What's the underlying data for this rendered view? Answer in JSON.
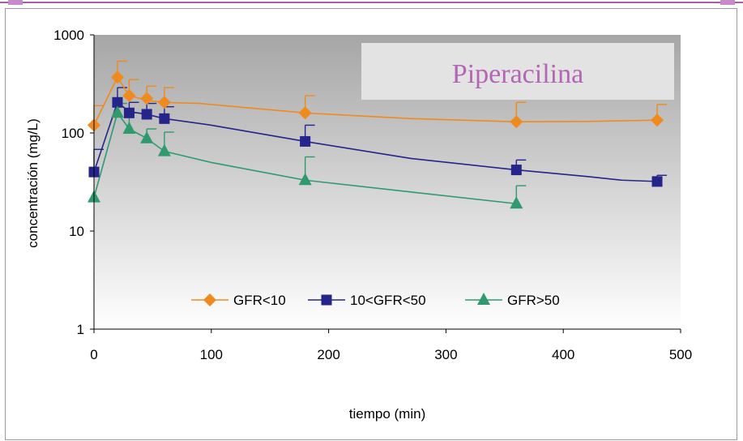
{
  "chart_data": {
    "type": "line",
    "title": "Piperacilina",
    "title_color": "#b366b3",
    "xlabel": "tiempo (min)",
    "ylabel": "concentración (mg/L)",
    "x_ticks": [
      "0",
      "100",
      "200",
      "300",
      "400",
      "500"
    ],
    "y_ticks": [
      "1",
      "10",
      "100",
      "1000"
    ],
    "xlim": [
      0,
      500
    ],
    "ylim": [
      1,
      1000
    ],
    "y_scale": "log",
    "grid": false,
    "legend_position": "bottom-center",
    "series": [
      {
        "name": "GFR<10",
        "color": "#f08a1e",
        "marker": "diamond",
        "points": [
          [
            0,
            120
          ],
          [
            20,
            370
          ],
          [
            30,
            240
          ],
          [
            45,
            225
          ],
          [
            60,
            205
          ],
          [
            180,
            160
          ],
          [
            360,
            130
          ],
          [
            480,
            135
          ]
        ],
        "error_up": [
          190,
          540,
          350,
          300,
          290,
          240,
          205,
          195
        ],
        "curve": [
          [
            0,
            120
          ],
          [
            20,
            370
          ],
          [
            30,
            240
          ],
          [
            45,
            215
          ],
          [
            60,
            205
          ],
          [
            90,
            200
          ],
          [
            180,
            160
          ],
          [
            270,
            140
          ],
          [
            360,
            130
          ],
          [
            420,
            131
          ],
          [
            480,
            135
          ]
        ]
      },
      {
        "name": "10<GFR<50",
        "color": "#24248a",
        "marker": "square",
        "points": [
          [
            0,
            40
          ],
          [
            20,
            205
          ],
          [
            30,
            160
          ],
          [
            45,
            155
          ],
          [
            60,
            140
          ],
          [
            180,
            82
          ],
          [
            360,
            42
          ],
          [
            480,
            32
          ]
        ],
        "error_up": [
          68,
          290,
          205,
          200,
          185,
          120,
          53,
          37
        ],
        "curve": [
          [
            0,
            40
          ],
          [
            20,
            205
          ],
          [
            30,
            165
          ],
          [
            45,
            155
          ],
          [
            60,
            140
          ],
          [
            100,
            120
          ],
          [
            180,
            82
          ],
          [
            270,
            55
          ],
          [
            360,
            42
          ],
          [
            420,
            36
          ],
          [
            450,
            33
          ],
          [
            480,
            32
          ]
        ]
      },
      {
        "name": "GFR>50",
        "color": "#2e9a6e",
        "marker": "triangle",
        "points": [
          [
            0,
            22
          ],
          [
            20,
            160
          ],
          [
            30,
            110
          ],
          [
            45,
            88
          ],
          [
            60,
            65
          ],
          [
            180,
            33
          ],
          [
            360,
            19
          ]
        ],
        "error_up": [
          22,
          200,
          160,
          110,
          102,
          57,
          29
        ],
        "curve": [
          [
            0,
            22
          ],
          [
            20,
            160
          ],
          [
            30,
            110
          ],
          [
            45,
            88
          ],
          [
            60,
            65
          ],
          [
            100,
            50
          ],
          [
            180,
            33
          ],
          [
            270,
            25
          ],
          [
            360,
            19
          ]
        ]
      }
    ]
  }
}
